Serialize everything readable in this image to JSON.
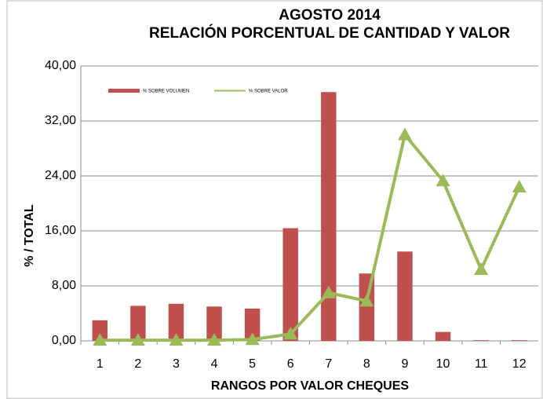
{
  "chart_data": {
    "type": "bar",
    "title": "AGOSTO  2014",
    "subtitle": "RELACIÓN PORCENTUAL DE CANTIDAD Y VALOR",
    "x_label": "RANGOS POR VALOR CHEQUES",
    "y_label": "%   /   TOTAL",
    "categories": [
      "1",
      "2",
      "3",
      "4",
      "5",
      "6",
      "7",
      "8",
      "9",
      "10",
      "11",
      "12"
    ],
    "series": [
      {
        "name": "% SOBRE VOLUMEN",
        "type": "bar",
        "color": "#c0504d",
        "values": [
          3.0,
          5.1,
          5.4,
          5.0,
          4.7,
          16.4,
          36.2,
          9.8,
          13.0,
          1.3,
          0.1,
          0.1
        ]
      },
      {
        "name": "% SOBRE VALOR",
        "type": "line",
        "color": "#9bbb59",
        "values": [
          0.1,
          0.1,
          0.1,
          0.1,
          0.2,
          1.0,
          7.0,
          5.8,
          30.0,
          23.3,
          10.4,
          22.4
        ]
      }
    ],
    "ylim": [
      0,
      40
    ],
    "yticks": [
      {
        "value": 0,
        "label": "0,00"
      },
      {
        "value": 8,
        "label": "8,00"
      },
      {
        "value": 16,
        "label": "16,00"
      },
      {
        "value": 24,
        "label": "24,00"
      },
      {
        "value": 32,
        "label": "32,00"
      },
      {
        "value": 40,
        "label": "40,00"
      }
    ],
    "grid": true,
    "legend": "top-left"
  }
}
